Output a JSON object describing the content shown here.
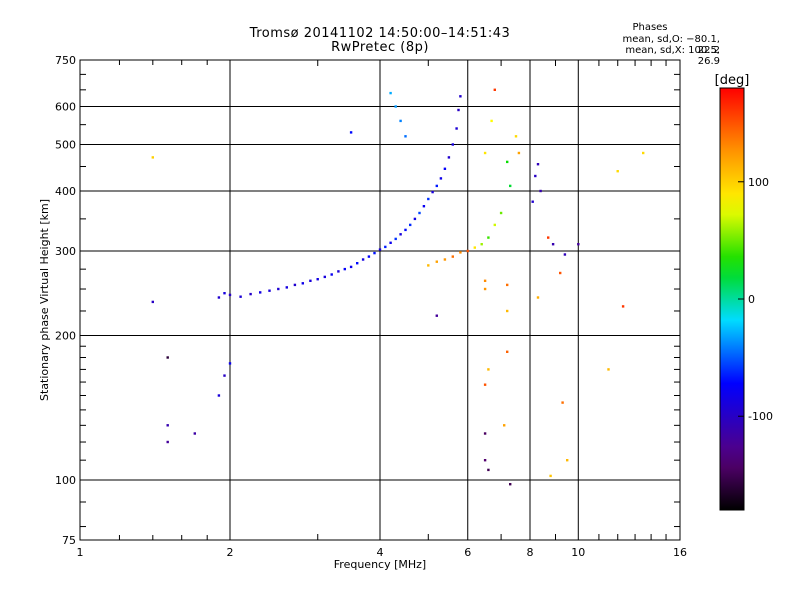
{
  "title_line1": "Tromsø 20141102 14:50:00–14:51:43",
  "title_line2": "RwPretec (8p)",
  "phase_label": "Phases",
  "phase_o": "mean, sd,O: −80.1, 22.2",
  "phase_x": "mean, sd,X: 100.5, 26.9",
  "chart_data": {
    "type": "scatter",
    "xlabel": "Frequency [MHz]",
    "ylabel": "Stationary phase Virtual Height [km]",
    "xscale": "log",
    "yscale": "log",
    "xlim": [
      1,
      16
    ],
    "ylim": [
      75,
      750
    ],
    "xticks": [
      1,
      2,
      4,
      6,
      8,
      10,
      16
    ],
    "yticks": [
      75,
      100,
      200,
      300,
      400,
      500,
      600,
      750
    ],
    "grid": "major only",
    "colorbar": {
      "label": "[deg]",
      "ticks": [
        100,
        0,
        -100
      ],
      "range": [
        -180,
        180
      ],
      "colormap": "rainbow (black-purple-blue-cyan-green-yellow-orange-red)"
    },
    "series": [
      {
        "mode": "O",
        "values": [
          [
            1.9,
            240,
            -95
          ],
          [
            1.95,
            245,
            -88
          ],
          [
            2.0,
            243,
            -100
          ],
          [
            2.1,
            241,
            -92
          ],
          [
            2.2,
            244,
            -98
          ],
          [
            2.3,
            246,
            -85
          ],
          [
            2.4,
            248,
            -90
          ],
          [
            2.5,
            250,
            -93
          ],
          [
            2.6,
            252,
            -87
          ],
          [
            2.7,
            255,
            -95
          ],
          [
            2.8,
            257,
            -82
          ],
          [
            2.9,
            260,
            -90
          ],
          [
            3.0,
            262,
            -85
          ],
          [
            3.1,
            265,
            -88
          ],
          [
            3.2,
            268,
            -78
          ],
          [
            3.3,
            272,
            -92
          ],
          [
            3.4,
            275,
            -75
          ],
          [
            3.5,
            278,
            -80
          ],
          [
            3.6,
            283,
            -70
          ],
          [
            3.7,
            288,
            -85
          ],
          [
            3.8,
            292,
            -72
          ],
          [
            3.9,
            297,
            -68
          ],
          [
            4.0,
            302,
            -90
          ],
          [
            4.1,
            306,
            -65
          ],
          [
            4.2,
            312,
            -80
          ],
          [
            4.3,
            318,
            -60
          ],
          [
            4.4,
            325,
            -88
          ],
          [
            4.5,
            332,
            -70
          ],
          [
            4.6,
            340,
            -62
          ],
          [
            4.7,
            350,
            -85
          ],
          [
            4.8,
            360,
            -55
          ],
          [
            4.9,
            372,
            -78
          ],
          [
            5.0,
            385,
            -60
          ],
          [
            5.1,
            398,
            -90
          ],
          [
            5.2,
            410,
            -66
          ],
          [
            5.3,
            425,
            -82
          ],
          [
            5.4,
            445,
            -74
          ],
          [
            5.5,
            470,
            -95
          ],
          [
            5.6,
            500,
            -88
          ],
          [
            5.7,
            540,
            -92
          ],
          [
            5.75,
            590,
            -100
          ],
          [
            5.8,
            630,
            -96
          ],
          [
            4.3,
            600,
            -35
          ],
          [
            4.4,
            560,
            -40
          ],
          [
            4.5,
            520,
            -45
          ],
          [
            4.2,
            640,
            -30
          ],
          [
            3.5,
            530,
            -70
          ],
          [
            8.2,
            430,
            -100
          ],
          [
            8.4,
            400,
            -110
          ],
          [
            8.1,
            380,
            -95
          ],
          [
            8.3,
            455,
            -105
          ],
          [
            1.9,
            150,
            -90
          ],
          [
            1.95,
            165,
            -100
          ],
          [
            2.0,
            175,
            -80
          ],
          [
            1.5,
            130,
            -110
          ],
          [
            1.5,
            120,
            -120
          ],
          [
            1.7,
            125,
            -115
          ],
          [
            1.4,
            235,
            -100
          ],
          [
            5.2,
            220,
            -120
          ],
          [
            8.9,
            310,
            -110
          ],
          [
            10.0,
            310,
            -120
          ],
          [
            9.4,
            295,
            -105
          ]
        ]
      },
      {
        "mode": "X",
        "values": [
          [
            5.0,
            280,
            110
          ],
          [
            5.2,
            285,
            120
          ],
          [
            5.4,
            288,
            125
          ],
          [
            5.6,
            292,
            140
          ],
          [
            5.8,
            298,
            130
          ],
          [
            6.0,
            300,
            150
          ],
          [
            6.2,
            305,
            90
          ],
          [
            6.4,
            310,
            60
          ],
          [
            6.6,
            320,
            40
          ],
          [
            6.8,
            340,
            70
          ],
          [
            7.0,
            360,
            50
          ],
          [
            6.5,
            480,
            90
          ],
          [
            6.7,
            560,
            80
          ],
          [
            6.8,
            650,
            160
          ],
          [
            7.2,
            460,
            30
          ],
          [
            7.5,
            520,
            95
          ],
          [
            7.6,
            480,
            120
          ],
          [
            7.3,
            410,
            20
          ],
          [
            6.5,
            260,
            130
          ],
          [
            6.5,
            250,
            125
          ],
          [
            7.2,
            255,
            140
          ],
          [
            7.2,
            225,
            110
          ],
          [
            7.2,
            185,
            145
          ],
          [
            7.1,
            130,
            120
          ],
          [
            6.6,
            170,
            110
          ],
          [
            6.5,
            158,
            150
          ],
          [
            7.3,
            98,
            -150
          ],
          [
            8.3,
            240,
            115
          ],
          [
            8.7,
            320,
            160
          ],
          [
            9.2,
            270,
            150
          ],
          [
            9.3,
            145,
            140
          ],
          [
            9.5,
            110,
            110
          ],
          [
            8.8,
            102,
            105
          ],
          [
            11.5,
            170,
            110
          ],
          [
            12.3,
            230,
            160
          ],
          [
            12.0,
            440,
            95
          ],
          [
            13.5,
            480,
            95
          ],
          [
            1.4,
            470,
            100
          ],
          [
            1.5,
            180,
            -160
          ],
          [
            6.5,
            125,
            -145
          ],
          [
            6.5,
            110,
            -140
          ],
          [
            6.6,
            105,
            -150
          ]
        ]
      }
    ]
  }
}
